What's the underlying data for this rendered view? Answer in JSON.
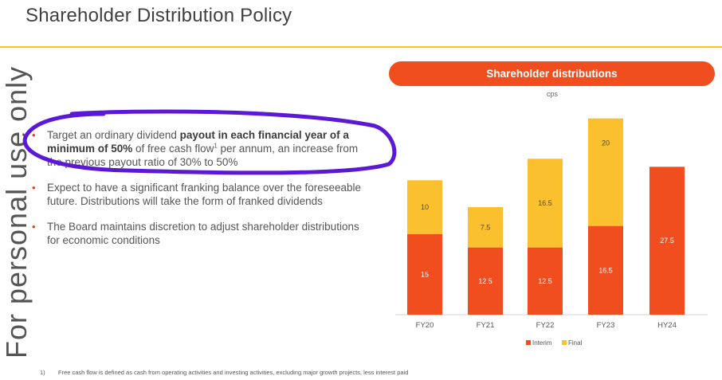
{
  "page": {
    "title": "Shareholder Distribution Policy",
    "watermark": "For personal use only"
  },
  "bullets": [
    {
      "pre": "Target an ordinary dividend ",
      "bold": "payout in each financial year of a minimum of 50%",
      "mid": " of free cash flow",
      "sup": "1",
      "post": " per annum, an increase from the previous payout ratio of 30% to 50%"
    },
    {
      "text": "Expect to have a significant franking balance over the foreseeable future. Distributions will take the form of franked dividends"
    },
    {
      "text": "The Board maintains discretion to adjust shareholder distributions for economic conditions"
    }
  ],
  "footnote": {
    "number": "1)",
    "text": "Free cash flow is defined as cash from operating activities and investing activities, excluding major growth projects, less interest paid"
  },
  "colors": {
    "interim": "#f04e1f",
    "final": "#fbc02d",
    "title_rule": "#f5c518",
    "annotation_stroke": "#5b18d6"
  },
  "chart_data": {
    "type": "bar",
    "stacked": true,
    "title": "Shareholder distributions",
    "ylabel": "cps",
    "categories": [
      "FY20",
      "FY21",
      "FY22",
      "FY23",
      "HY24"
    ],
    "series": [
      {
        "name": "Interim",
        "values": [
          15,
          12.5,
          12.5,
          16.5,
          27.5
        ]
      },
      {
        "name": "Final",
        "values": [
          10,
          7.5,
          16.5,
          20,
          null
        ]
      }
    ],
    "ylim": [
      0,
      37
    ],
    "grid": false,
    "legend": "bottom-center"
  }
}
